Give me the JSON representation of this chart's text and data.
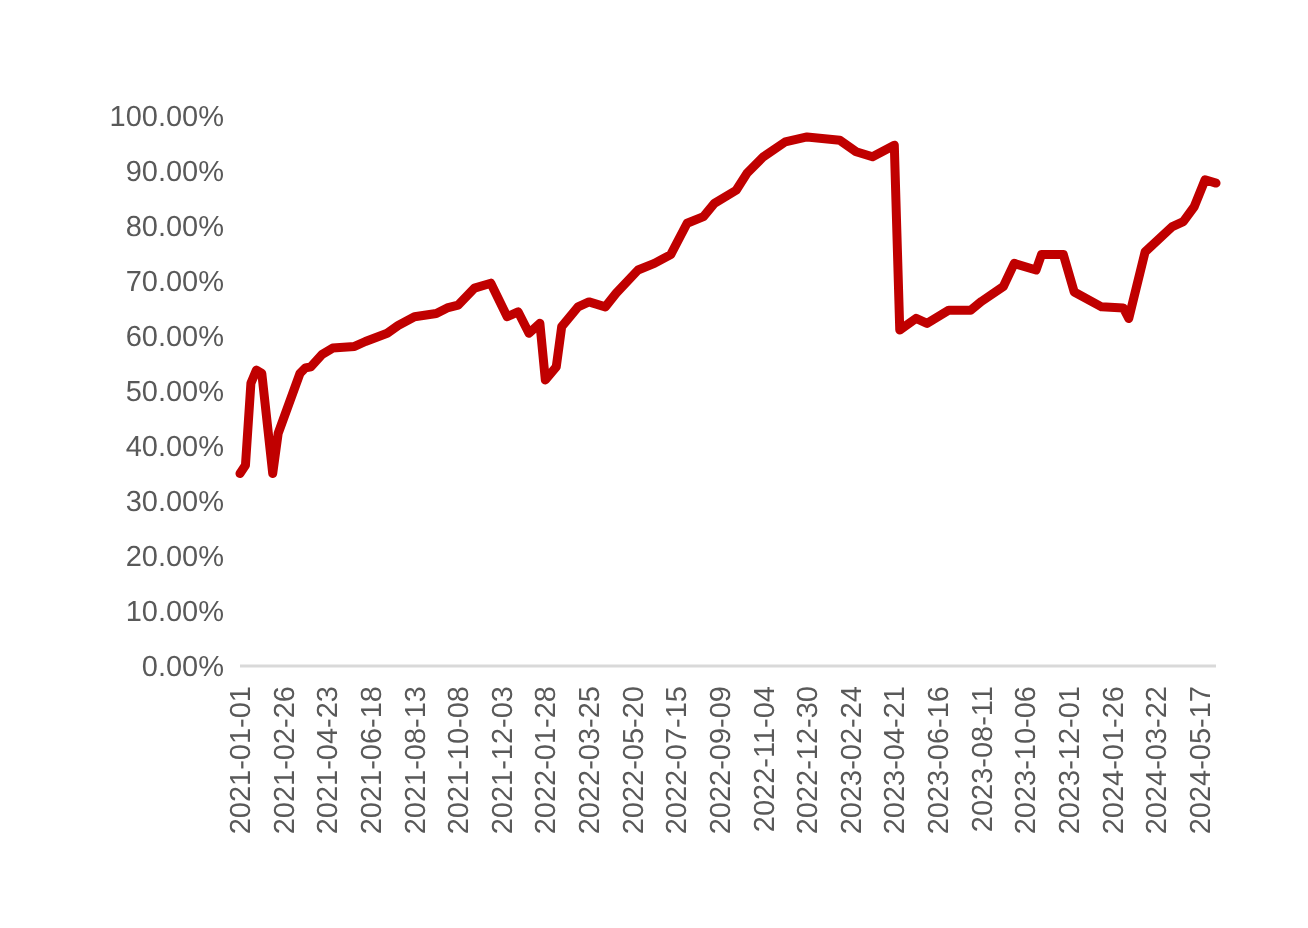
{
  "chart_data": {
    "type": "line",
    "grid": false,
    "line_style": "solid",
    "marker": "none",
    "xlim": [
      "2021-01-01",
      "2024-06-07"
    ],
    "xticks": [
      {
        "value": "2021-01-01",
        "label": "2021-01-01"
      },
      {
        "value": "2021-02-26",
        "label": "2021-02-26"
      },
      {
        "value": "2021-04-23",
        "label": "2021-04-23"
      },
      {
        "value": "2021-06-18",
        "label": "2021-06-18"
      },
      {
        "value": "2021-08-13",
        "label": "2021-08-13"
      },
      {
        "value": "2021-10-08",
        "label": "2021-10-08"
      },
      {
        "value": "2021-12-03",
        "label": "2021-12-03"
      },
      {
        "value": "2022-01-28",
        "label": "2022-01-28"
      },
      {
        "value": "2022-03-25",
        "label": "2022-03-25"
      },
      {
        "value": "2022-05-20",
        "label": "2022-05-20"
      },
      {
        "value": "2022-07-15",
        "label": "2022-07-15"
      },
      {
        "value": "2022-09-09",
        "label": "2022-09-09"
      },
      {
        "value": "2022-11-04",
        "label": "2022-11-04"
      },
      {
        "value": "2022-12-30",
        "label": "2022-12-30"
      },
      {
        "value": "2023-02-24",
        "label": "2023-02-24"
      },
      {
        "value": "2023-04-21",
        "label": "2023-04-21"
      },
      {
        "value": "2023-06-16",
        "label": "2023-06-16"
      },
      {
        "value": "2023-08-11",
        "label": "2023-08-11"
      },
      {
        "value": "2023-10-06",
        "label": "2023-10-06"
      },
      {
        "value": "2023-12-01",
        "label": "2023-12-01"
      },
      {
        "value": "2024-01-26",
        "label": "2024-01-26"
      },
      {
        "value": "2024-03-22",
        "label": "2024-03-22"
      },
      {
        "value": "2024-05-17",
        "label": "2024-05-17"
      }
    ],
    "ylim": [
      0,
      100
    ],
    "yticks": [
      {
        "value": 0,
        "label": "0.00%"
      },
      {
        "value": 10,
        "label": "10.00%"
      },
      {
        "value": 20,
        "label": "20.00%"
      },
      {
        "value": 30,
        "label": "30.00%"
      },
      {
        "value": 40,
        "label": "40.00%"
      },
      {
        "value": 50,
        "label": "50.00%"
      },
      {
        "value": 60,
        "label": "60.00%"
      },
      {
        "value": 70,
        "label": "70.00%"
      },
      {
        "value": 80,
        "label": "80.00%"
      },
      {
        "value": 90,
        "label": "90.00%"
      },
      {
        "value": 100,
        "label": "100.00%"
      }
    ],
    "x": [
      "2021-01-01",
      "2021-01-08",
      "2021-01-15",
      "2021-01-22",
      "2021-01-29",
      "2021-02-12",
      "2021-02-19",
      "2021-03-19",
      "2021-03-26",
      "2021-04-02",
      "2021-04-16",
      "2021-04-30",
      "2021-05-28",
      "2021-06-11",
      "2021-07-09",
      "2021-07-23",
      "2021-08-13",
      "2021-09-10",
      "2021-09-24",
      "2021-10-08",
      "2021-10-29",
      "2021-11-19",
      "2021-12-10",
      "2021-12-24",
      "2022-01-07",
      "2022-01-21",
      "2022-01-28",
      "2022-02-11",
      "2022-02-18",
      "2022-03-11",
      "2022-03-25",
      "2022-04-15",
      "2022-04-29",
      "2022-05-27",
      "2022-06-17",
      "2022-07-08",
      "2022-07-29",
      "2022-08-19",
      "2022-09-02",
      "2022-09-30",
      "2022-10-14",
      "2022-11-04",
      "2022-12-02",
      "2022-12-30",
      "2023-02-10",
      "2023-03-03",
      "2023-03-24",
      "2023-04-21",
      "2023-04-28",
      "2023-05-19",
      "2023-06-02",
      "2023-06-30",
      "2023-07-28",
      "2023-08-11",
      "2023-09-08",
      "2023-09-22",
      "2023-10-20",
      "2023-10-27",
      "2023-11-24",
      "2023-12-08",
      "2024-01-12",
      "2024-02-09",
      "2024-02-16",
      "2024-03-08",
      "2024-04-12",
      "2024-04-26",
      "2024-05-10",
      "2024-05-24",
      "2024-06-07"
    ],
    "series": [
      {
        "color": "#c00000",
        "values": [
          35.0,
          36.5,
          51.4,
          53.8,
          53.2,
          35.0,
          42.3,
          53.2,
          54.2,
          54.4,
          56.6,
          57.8,
          58.1,
          59.0,
          60.5,
          61.9,
          63.5,
          64.1,
          65.1,
          65.6,
          68.7,
          69.6,
          63.5,
          64.4,
          60.5,
          62.3,
          52.0,
          54.4,
          61.7,
          65.3,
          66.2,
          65.3,
          67.8,
          72.0,
          73.2,
          74.8,
          80.5,
          81.7,
          84.1,
          86.5,
          89.6,
          92.6,
          95.3,
          96.2,
          95.6,
          93.5,
          92.6,
          94.7,
          61.1,
          63.2,
          62.3,
          64.7,
          64.7,
          66.3,
          69.0,
          73.2,
          72.0,
          74.8,
          74.8,
          68.0,
          65.3,
          65.1,
          63.2,
          75.3,
          79.9,
          80.8,
          83.5,
          88.4,
          87.8
        ]
      }
    ]
  }
}
